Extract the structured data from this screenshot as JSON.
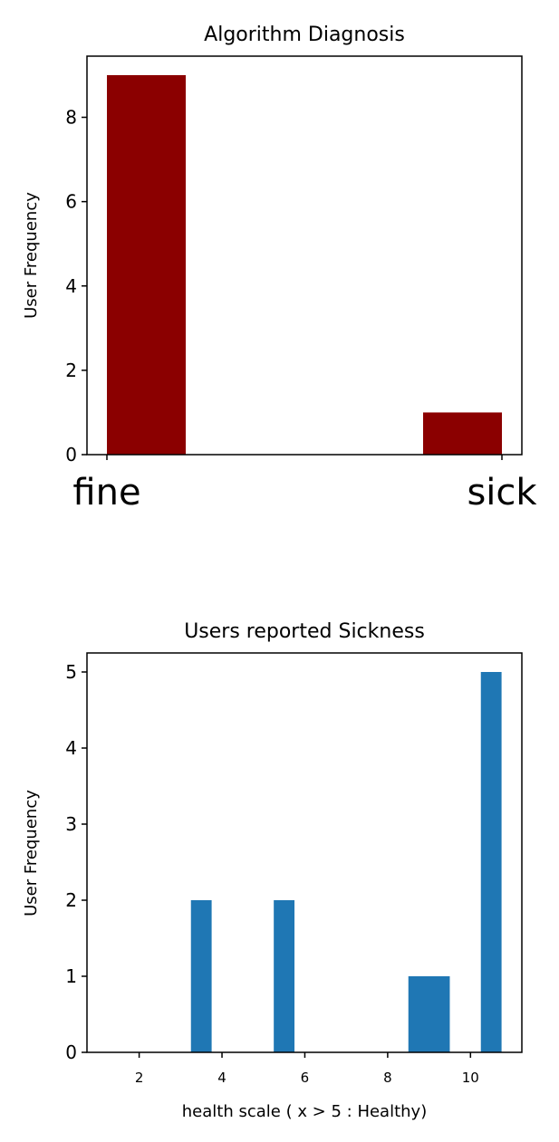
{
  "chart_data": [
    {
      "type": "bar",
      "title": "Algorithm Diagnosis",
      "xlabel": "",
      "ylabel": "User Frequency",
      "categories": [
        "fine",
        "sick"
      ],
      "values": [
        9,
        1
      ],
      "ylim": [
        0,
        9.45
      ],
      "yticks": [
        0,
        2,
        4,
        6,
        8
      ],
      "grid": false,
      "colors": {
        "bar": "#8b0000"
      }
    },
    {
      "type": "bar",
      "title": "Users reported Sickness",
      "xlabel": "health scale ( x > 5  : Healthy)",
      "ylabel": "User Frequency",
      "bins": [
        {
          "x_start": 3.25,
          "x_end": 3.75,
          "value": 2
        },
        {
          "x_start": 5.25,
          "x_end": 5.75,
          "value": 2
        },
        {
          "x_start": 8.5,
          "x_end": 9.5,
          "value": 1
        },
        {
          "x_start": 10.25,
          "x_end": 10.75,
          "value": 5
        }
      ],
      "xlim": [
        0.74,
        11.24
      ],
      "ylim": [
        0,
        5.25
      ],
      "xticks": [
        2,
        4,
        6,
        8,
        10
      ],
      "yticks": [
        0,
        1,
        2,
        3,
        4,
        5
      ],
      "grid": false,
      "colors": {
        "bar": "#1f77b4"
      }
    }
  ]
}
